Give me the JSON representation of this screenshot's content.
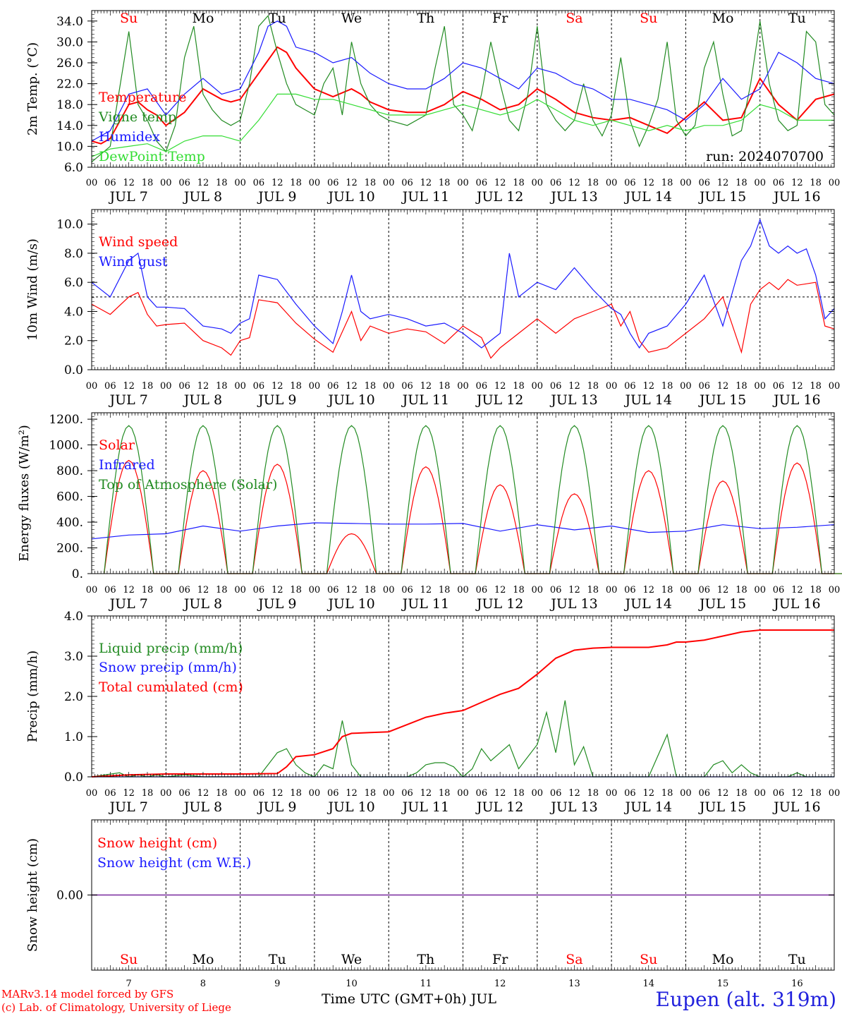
{
  "run_label": "run: 2024070700",
  "day_names": [
    "Su",
    "Mo",
    "Tu",
    "We",
    "Th",
    "Fr",
    "Sa",
    "Su",
    "Mo",
    "Tu"
  ],
  "day_name_colors": [
    "#ff0000",
    "#000000",
    "#000000",
    "#000000",
    "#000000",
    "#000000",
    "#ff0000",
    "#ff0000",
    "#000000",
    "#000000"
  ],
  "date_labels": [
    "JUL  7",
    "JUL  8",
    "JUL  9",
    "JUL 10",
    "JUL 11",
    "JUL 12",
    "JUL 13",
    "JUL 14",
    "JUL 15",
    "JUL 16"
  ],
  "hour_ticks": [
    "00",
    "06",
    "12",
    "18"
  ],
  "bottom_day_numbers": [
    "7",
    "8",
    "9",
    "10",
    "11",
    "12",
    "13",
    "14",
    "15",
    "16"
  ],
  "footer": {
    "credit_line1": "MARv3.14 model forced by GFS",
    "credit_line2": "(c) Lab. of Climatology, University of Liege",
    "axis_title": "Time UTC (GMT+0h) JUL",
    "station": "Eupen (alt. 319m)"
  },
  "colors": {
    "red": "#ff0000",
    "green": "#228b22",
    "blue": "#1a1aff",
    "lightgreen": "#33dd33",
    "purple": "#8844aa"
  },
  "chart_data": [
    {
      "type": "line",
      "ylabel": "2m Temp. (°C)",
      "yticks": [
        "34.0",
        "30.0",
        "26.0",
        "22.0",
        "18.0",
        "14.0",
        "10.0",
        "6.0"
      ],
      "ylim": [
        6,
        36
      ],
      "x_unit": "hours since JUL 7 00 UTC",
      "xlim": [
        0,
        240
      ],
      "series": [
        {
          "name": "Temperature",
          "color": "#ff0000",
          "x": [
            0,
            3,
            6,
            12,
            15,
            18,
            21,
            24,
            30,
            36,
            39,
            42,
            45,
            48,
            54,
            60,
            63,
            66,
            69,
            72,
            78,
            84,
            87,
            90,
            96,
            102,
            108,
            114,
            120,
            126,
            132,
            138,
            144,
            150,
            156,
            162,
            168,
            174,
            180,
            186,
            192,
            198,
            204,
            210,
            216,
            222,
            228,
            234,
            240
          ],
          "y": [
            11,
            10.5,
            11.5,
            18,
            18.5,
            17,
            16,
            14,
            16.5,
            21,
            20,
            19,
            18.5,
            19,
            24,
            29,
            28,
            25,
            23,
            21,
            19.5,
            21,
            20,
            18.5,
            17,
            16.5,
            16.5,
            18,
            20.5,
            19,
            17,
            18,
            21,
            19,
            16.5,
            15.5,
            15,
            15.5,
            14,
            12.5,
            15.5,
            18.5,
            15,
            15.5,
            23,
            18,
            15,
            19,
            20
          ]
        },
        {
          "name": "Vigne temp",
          "color": "#228b22",
          "x": [
            0,
            6,
            9,
            12,
            15,
            18,
            21,
            24,
            27,
            30,
            33,
            36,
            39,
            42,
            45,
            48,
            51,
            54,
            57,
            60,
            63,
            66,
            69,
            72,
            75,
            78,
            81,
            84,
            87,
            90,
            93,
            96,
            102,
            108,
            111,
            114,
            117,
            120,
            123,
            126,
            129,
            132,
            135,
            138,
            141,
            144,
            147,
            150,
            153,
            156,
            159,
            162,
            165,
            168,
            171,
            174,
            177,
            180,
            183,
            186,
            189,
            192,
            195,
            198,
            201,
            204,
            207,
            210,
            213,
            216,
            219,
            222,
            225,
            228,
            231,
            234,
            237,
            240
          ],
          "y": [
            7,
            10,
            21,
            32,
            18,
            15,
            11,
            9,
            14,
            27,
            33,
            20,
            17,
            15,
            14,
            15,
            22,
            33,
            35,
            28,
            22,
            18,
            17,
            16,
            22,
            25,
            16,
            30,
            22,
            18,
            16,
            15,
            14,
            16,
            25,
            33,
            18,
            16,
            13,
            20,
            30,
            22,
            15,
            13,
            20,
            33,
            18,
            15,
            13,
            15,
            22,
            15,
            12,
            16,
            27,
            15,
            10,
            14,
            19,
            30,
            15,
            12,
            14,
            25,
            30,
            20,
            12,
            13,
            22,
            34,
            22,
            15,
            13,
            14,
            32,
            30,
            18,
            16
          ]
        },
        {
          "name": "Humidex",
          "color": "#1a1aff",
          "x": [
            0,
            6,
            12,
            18,
            24,
            30,
            36,
            42,
            48,
            54,
            57,
            60,
            63,
            66,
            72,
            78,
            84,
            90,
            96,
            102,
            108,
            114,
            120,
            126,
            132,
            138,
            144,
            150,
            156,
            162,
            168,
            174,
            180,
            186,
            192,
            198,
            204,
            210,
            216,
            222,
            228,
            234,
            240
          ],
          "y": [
            11,
            13,
            20,
            21,
            16,
            20,
            23,
            20,
            21,
            28,
            33,
            34,
            33,
            29,
            28,
            26,
            27,
            24,
            22,
            21,
            21,
            23,
            26,
            25,
            23,
            21,
            25,
            24,
            22,
            21,
            19,
            19,
            18,
            17,
            15,
            18,
            23,
            19,
            21,
            28,
            26,
            23,
            22
          ]
        },
        {
          "name": "DewPoint Temp",
          "color": "#33dd33",
          "x": [
            0,
            6,
            12,
            18,
            24,
            30,
            36,
            42,
            48,
            54,
            60,
            66,
            72,
            78,
            84,
            90,
            96,
            102,
            108,
            114,
            120,
            126,
            132,
            138,
            144,
            150,
            156,
            162,
            168,
            174,
            180,
            186,
            192,
            198,
            204,
            210,
            216,
            222,
            228,
            234,
            240
          ],
          "y": [
            8,
            9.5,
            10,
            10.5,
            9,
            11,
            12,
            12,
            11,
            15,
            20,
            20,
            19,
            19,
            18,
            17,
            16,
            16,
            16,
            17,
            18,
            17,
            16,
            17,
            19,
            17,
            15,
            14,
            15,
            14,
            13,
            14,
            13,
            14,
            14,
            15,
            18,
            17,
            15,
            15,
            15
          ]
        }
      ]
    },
    {
      "type": "line",
      "ylabel": "10m Wind (m/s)",
      "yticks": [
        "10.0",
        "8.0",
        "6.0",
        "4.0",
        "2.0",
        "0.0"
      ],
      "ylim": [
        0,
        11
      ],
      "reference_line": 5,
      "xlim": [
        0,
        240
      ],
      "series": [
        {
          "name": "Wind speed",
          "color": "#ff0000",
          "x": [
            0,
            6,
            12,
            15,
            18,
            21,
            24,
            30,
            36,
            42,
            45,
            48,
            51,
            54,
            60,
            66,
            72,
            78,
            84,
            87,
            90,
            96,
            102,
            108,
            114,
            120,
            126,
            129,
            132,
            138,
            144,
            150,
            156,
            162,
            168,
            171,
            174,
            177,
            180,
            186,
            192,
            198,
            204,
            210,
            213,
            216,
            219,
            222,
            225,
            228,
            234,
            237,
            240
          ],
          "y": [
            4.5,
            3.8,
            5,
            5.3,
            3.8,
            3,
            3.1,
            3.2,
            2,
            1.5,
            1,
            2,
            2.2,
            4.8,
            4.6,
            3.2,
            2.1,
            1.2,
            4,
            2,
            3,
            2.5,
            2.8,
            2.6,
            1.8,
            3,
            2.2,
            0.8,
            1.5,
            2.5,
            3.5,
            2.5,
            3.5,
            4,
            4.5,
            3,
            4,
            2,
            1.2,
            1.5,
            2.5,
            3.5,
            5,
            1.2,
            4.5,
            5.5,
            6,
            5.5,
            6.2,
            5.8,
            6,
            3,
            2.8
          ]
        },
        {
          "name": "Wind gust",
          "color": "#1a1aff",
          "x": [
            0,
            6,
            12,
            15,
            18,
            21,
            24,
            30,
            36,
            42,
            45,
            48,
            51,
            54,
            60,
            66,
            72,
            78,
            81,
            84,
            87,
            90,
            96,
            102,
            108,
            114,
            120,
            126,
            132,
            135,
            138,
            144,
            150,
            156,
            162,
            168,
            171,
            174,
            177,
            180,
            186,
            192,
            198,
            204,
            210,
            213,
            216,
            219,
            222,
            225,
            228,
            231,
            234,
            237,
            240
          ],
          "y": [
            6,
            5,
            7.5,
            8,
            5,
            4.3,
            4.3,
            4.2,
            3,
            2.8,
            2.5,
            3.2,
            3.5,
            6.5,
            6.2,
            4.5,
            3,
            1.8,
            4,
            6.5,
            4,
            3.5,
            3.8,
            3.5,
            3,
            3.2,
            2.5,
            1.5,
            2.5,
            8,
            5,
            6,
            5.5,
            7,
            5.5,
            4.2,
            3.8,
            2.5,
            1.5,
            2.5,
            3,
            4.5,
            6.5,
            3,
            7.5,
            8.5,
            10.3,
            8.5,
            8,
            8.5,
            8,
            8.3,
            6.5,
            3.5,
            4.2
          ]
        }
      ]
    },
    {
      "type": "line",
      "ylabel": "Energy fluxes (W/m²)",
      "yticks": [
        "1200.",
        "1000.",
        "800.",
        "600.",
        "400.",
        "200.",
        "0."
      ],
      "ylim": [
        0,
        1250
      ],
      "xlim": [
        0,
        240
      ],
      "series": [
        {
          "name": "Solar",
          "color": "#ff0000",
          "daily_peaks": [
            880,
            800,
            850,
            310,
            830,
            690,
            620,
            800,
            720,
            860
          ]
        },
        {
          "name": "Infrared",
          "color": "#1a1aff",
          "x": [
            0,
            12,
            24,
            36,
            48,
            60,
            72,
            84,
            96,
            108,
            120,
            132,
            144,
            156,
            168,
            180,
            192,
            204,
            216,
            228,
            240
          ],
          "y": [
            270,
            300,
            310,
            370,
            330,
            370,
            395,
            390,
            385,
            385,
            390,
            330,
            380,
            340,
            370,
            320,
            330,
            380,
            350,
            360,
            380
          ]
        },
        {
          "name": "Top of Atmosphere (Solar)",
          "color": "#228b22",
          "daily_peak": 1150,
          "sunrise_hour": 4,
          "sunset_hour": 20
        }
      ]
    },
    {
      "type": "line",
      "ylabel": "Precip (mm/h)",
      "yticks": [
        "4.0",
        "3.0",
        "2.0",
        "1.0",
        "0.0"
      ],
      "ylim": [
        0,
        4
      ],
      "xlim": [
        0,
        240
      ],
      "series": [
        {
          "name": "Liquid precip (mm/h)",
          "color": "#228b22",
          "x": [
            0,
            9,
            12,
            15,
            18,
            21,
            24,
            30,
            36,
            48,
            54,
            57,
            60,
            63,
            66,
            69,
            72,
            75,
            78,
            81,
            84,
            87,
            90,
            96,
            102,
            105,
            108,
            111,
            114,
            117,
            120,
            123,
            126,
            129,
            132,
            135,
            138,
            141,
            144,
            147,
            150,
            153,
            156,
            159,
            162,
            165,
            168,
            171,
            174,
            177,
            180,
            186,
            189,
            192,
            198,
            201,
            204,
            207,
            210,
            213,
            216,
            219,
            222,
            225,
            228,
            231,
            234,
            240
          ],
          "y": [
            0,
            0.1,
            0,
            0.05,
            0,
            0.05,
            0,
            0.05,
            0,
            0,
            0,
            0.3,
            0.6,
            0.7,
            0.3,
            0.1,
            0,
            0.3,
            0.2,
            1.4,
            0.3,
            0,
            0,
            0,
            0,
            0.1,
            0.3,
            0.35,
            0.35,
            0.25,
            0,
            0.2,
            0.7,
            0.4,
            0.6,
            0.8,
            0.2,
            0.5,
            0.8,
            1.6,
            0.6,
            1.9,
            0.3,
            0.75,
            0,
            0,
            0,
            0,
            0,
            0,
            0,
            1.05,
            0,
            0,
            0,
            0.3,
            0.4,
            0.1,
            0.3,
            0.1,
            0,
            0,
            0,
            0,
            0.1,
            0,
            0,
            0
          ]
        },
        {
          "name": "Snow precip (mm/h)",
          "color": "#1a1aff",
          "x": [
            0,
            240
          ],
          "y": [
            0,
            0
          ]
        },
        {
          "name": "Total cumulated (cm)",
          "color": "#ff0000",
          "x": [
            0,
            12,
            24,
            48,
            60,
            63,
            66,
            72,
            78,
            81,
            84,
            90,
            96,
            102,
            108,
            114,
            120,
            126,
            132,
            138,
            144,
            150,
            156,
            162,
            168,
            174,
            180,
            186,
            189,
            192,
            198,
            204,
            210,
            216,
            222,
            228,
            234,
            240
          ],
          "y": [
            0,
            0.05,
            0.07,
            0.07,
            0.08,
            0.25,
            0.5,
            0.55,
            0.7,
            1.0,
            1.08,
            1.1,
            1.12,
            1.3,
            1.48,
            1.58,
            1.65,
            1.85,
            2.05,
            2.2,
            2.55,
            2.95,
            3.15,
            3.2,
            3.22,
            3.22,
            3.22,
            3.28,
            3.35,
            3.35,
            3.4,
            3.5,
            3.6,
            3.65,
            3.65,
            3.65,
            3.65,
            3.65
          ]
        }
      ]
    },
    {
      "type": "line",
      "ylabel": "Snow height (cm)",
      "yticks": [
        "0.00"
      ],
      "ylim": [
        -1,
        1
      ],
      "xlim": [
        0,
        240
      ],
      "series": [
        {
          "name": "Snow height (cm)",
          "color": "#ff0000",
          "x": [
            0,
            240
          ],
          "y": [
            0,
            0
          ]
        },
        {
          "name": "Snow height (cm W.E.)",
          "color": "#1a1aff",
          "x": [
            0,
            240
          ],
          "y": [
            0,
            0
          ]
        }
      ]
    }
  ]
}
